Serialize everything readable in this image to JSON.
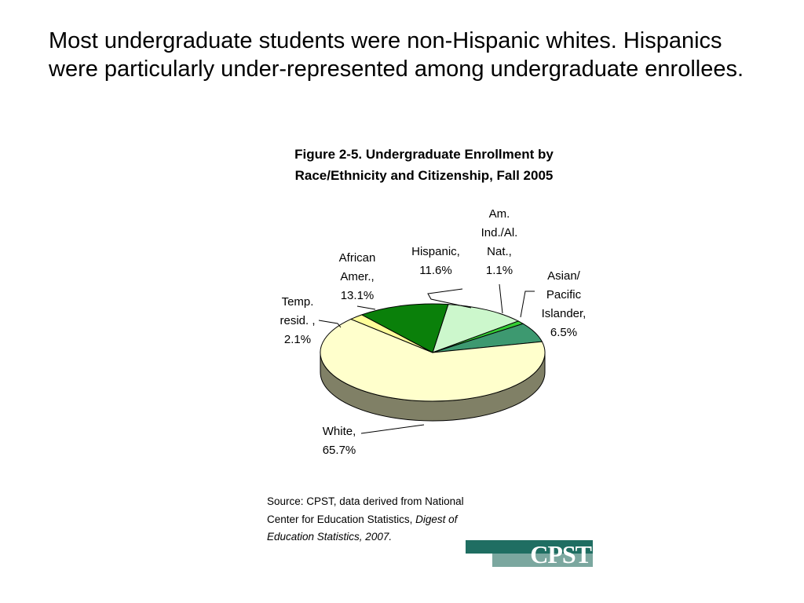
{
  "slide": {
    "headline": "Most undergraduate students were non-Hispanic whites. Hispanics were particularly under-represented among undergraduate enrollees."
  },
  "chart_data": {
    "type": "pie",
    "style": "3d",
    "title": "Figure 2-5. Undergraduate Enrollment by Race/Ethnicity and Citizenship, Fall 2005",
    "slices": [
      {
        "name": "Hispanic",
        "value": 11.6,
        "color": "#ccf7cc",
        "side_color": "#8cb08c",
        "label_lines": [
          "Hispanic,",
          "11.6%"
        ]
      },
      {
        "name": "Am. Ind./Al. Nat.",
        "value": 1.1,
        "color": "#33cc33",
        "side_color": "#1f801f",
        "label_lines": [
          "Am.",
          "Ind./Al.",
          "Nat.,",
          "1.1%"
        ]
      },
      {
        "name": "Asian/ Pacific Islander",
        "value": 6.5,
        "color": "#3d9970",
        "side_color": "#2a6b4e",
        "label_lines": [
          "Asian/",
          "Pacific",
          "Islander,",
          "6.5%"
        ]
      },
      {
        "name": "White",
        "value": 65.7,
        "color": "#ffffcc",
        "side_color": "#808066",
        "label_lines": [
          "White,",
          "65.7%"
        ]
      },
      {
        "name": "Temp. resid.",
        "value": 2.1,
        "color": "#ffff99",
        "side_color": "#a3a35c",
        "label_lines": [
          "Temp.",
          "resid. ,",
          "2.1%"
        ]
      },
      {
        "name": "African Amer.",
        "value": 13.1,
        "color": "#0a800a",
        "side_color": "#064d06",
        "label_lines": [
          "African",
          "Amer.,",
          "13.1%"
        ]
      }
    ]
  },
  "source": {
    "prefix": "Source: CPST, data derived from National Center for Education Statistics, ",
    "italic": "Digest of Education Statistics, 2007."
  },
  "logo": {
    "text": "CPST",
    "colors": [
      "#1f6e62",
      "#7ba79f"
    ]
  }
}
